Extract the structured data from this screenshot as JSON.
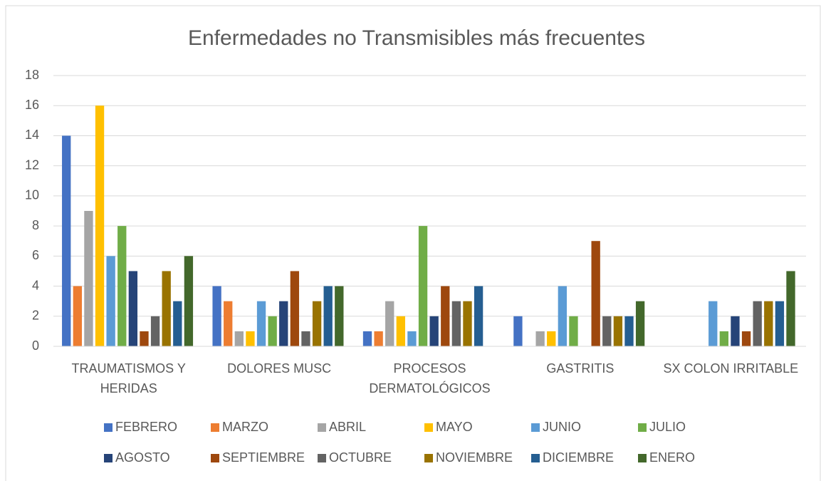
{
  "chart_data": {
    "type": "bar",
    "title": "Enfermedades no Transmisibles más frecuentes",
    "categories": [
      "TRAUMATISMOS Y HERIDAS",
      "DOLORES MUSC",
      "PROCESOS DERMATOLÓGICOS",
      "GASTRITIS",
      "SX COLON IRRITABLE"
    ],
    "series": [
      {
        "name": "FEBRERO",
        "color": "#4472c4",
        "values": [
          14,
          4,
          1,
          2,
          null
        ]
      },
      {
        "name": "MARZO",
        "color": "#ed7d31",
        "values": [
          4,
          3,
          1,
          null,
          null
        ]
      },
      {
        "name": "ABRIL",
        "color": "#a5a5a5",
        "values": [
          9,
          1,
          3,
          1,
          null
        ]
      },
      {
        "name": "MAYO",
        "color": "#ffc000",
        "values": [
          16,
          1,
          2,
          1,
          null
        ]
      },
      {
        "name": "JUNIO",
        "color": "#5b9bd5",
        "values": [
          6,
          3,
          1,
          4,
          3
        ]
      },
      {
        "name": "JULIO",
        "color": "#70ad47",
        "values": [
          8,
          2,
          8,
          2,
          1
        ]
      },
      {
        "name": "AGOSTO",
        "color": "#264478",
        "values": [
          5,
          3,
          2,
          null,
          2
        ]
      },
      {
        "name": "SEPTIEMBRE",
        "color": "#9e480e",
        "values": [
          1,
          5,
          4,
          7,
          1
        ]
      },
      {
        "name": "OCTUBRE",
        "color": "#636363",
        "values": [
          2,
          1,
          3,
          2,
          3
        ]
      },
      {
        "name": "NOVIEMBRE",
        "color": "#997300",
        "values": [
          5,
          3,
          3,
          2,
          3
        ]
      },
      {
        "name": "DICIEMBRE",
        "color": "#255e91",
        "values": [
          3,
          4,
          4,
          2,
          3
        ]
      },
      {
        "name": "ENERO",
        "color": "#43682b",
        "values": [
          6,
          4,
          null,
          3,
          5
        ]
      }
    ],
    "ylim": [
      0,
      18
    ],
    "yticks": [
      0,
      2,
      4,
      6,
      8,
      10,
      12,
      14,
      16,
      18
    ],
    "grid": true,
    "legend": "bottom"
  }
}
